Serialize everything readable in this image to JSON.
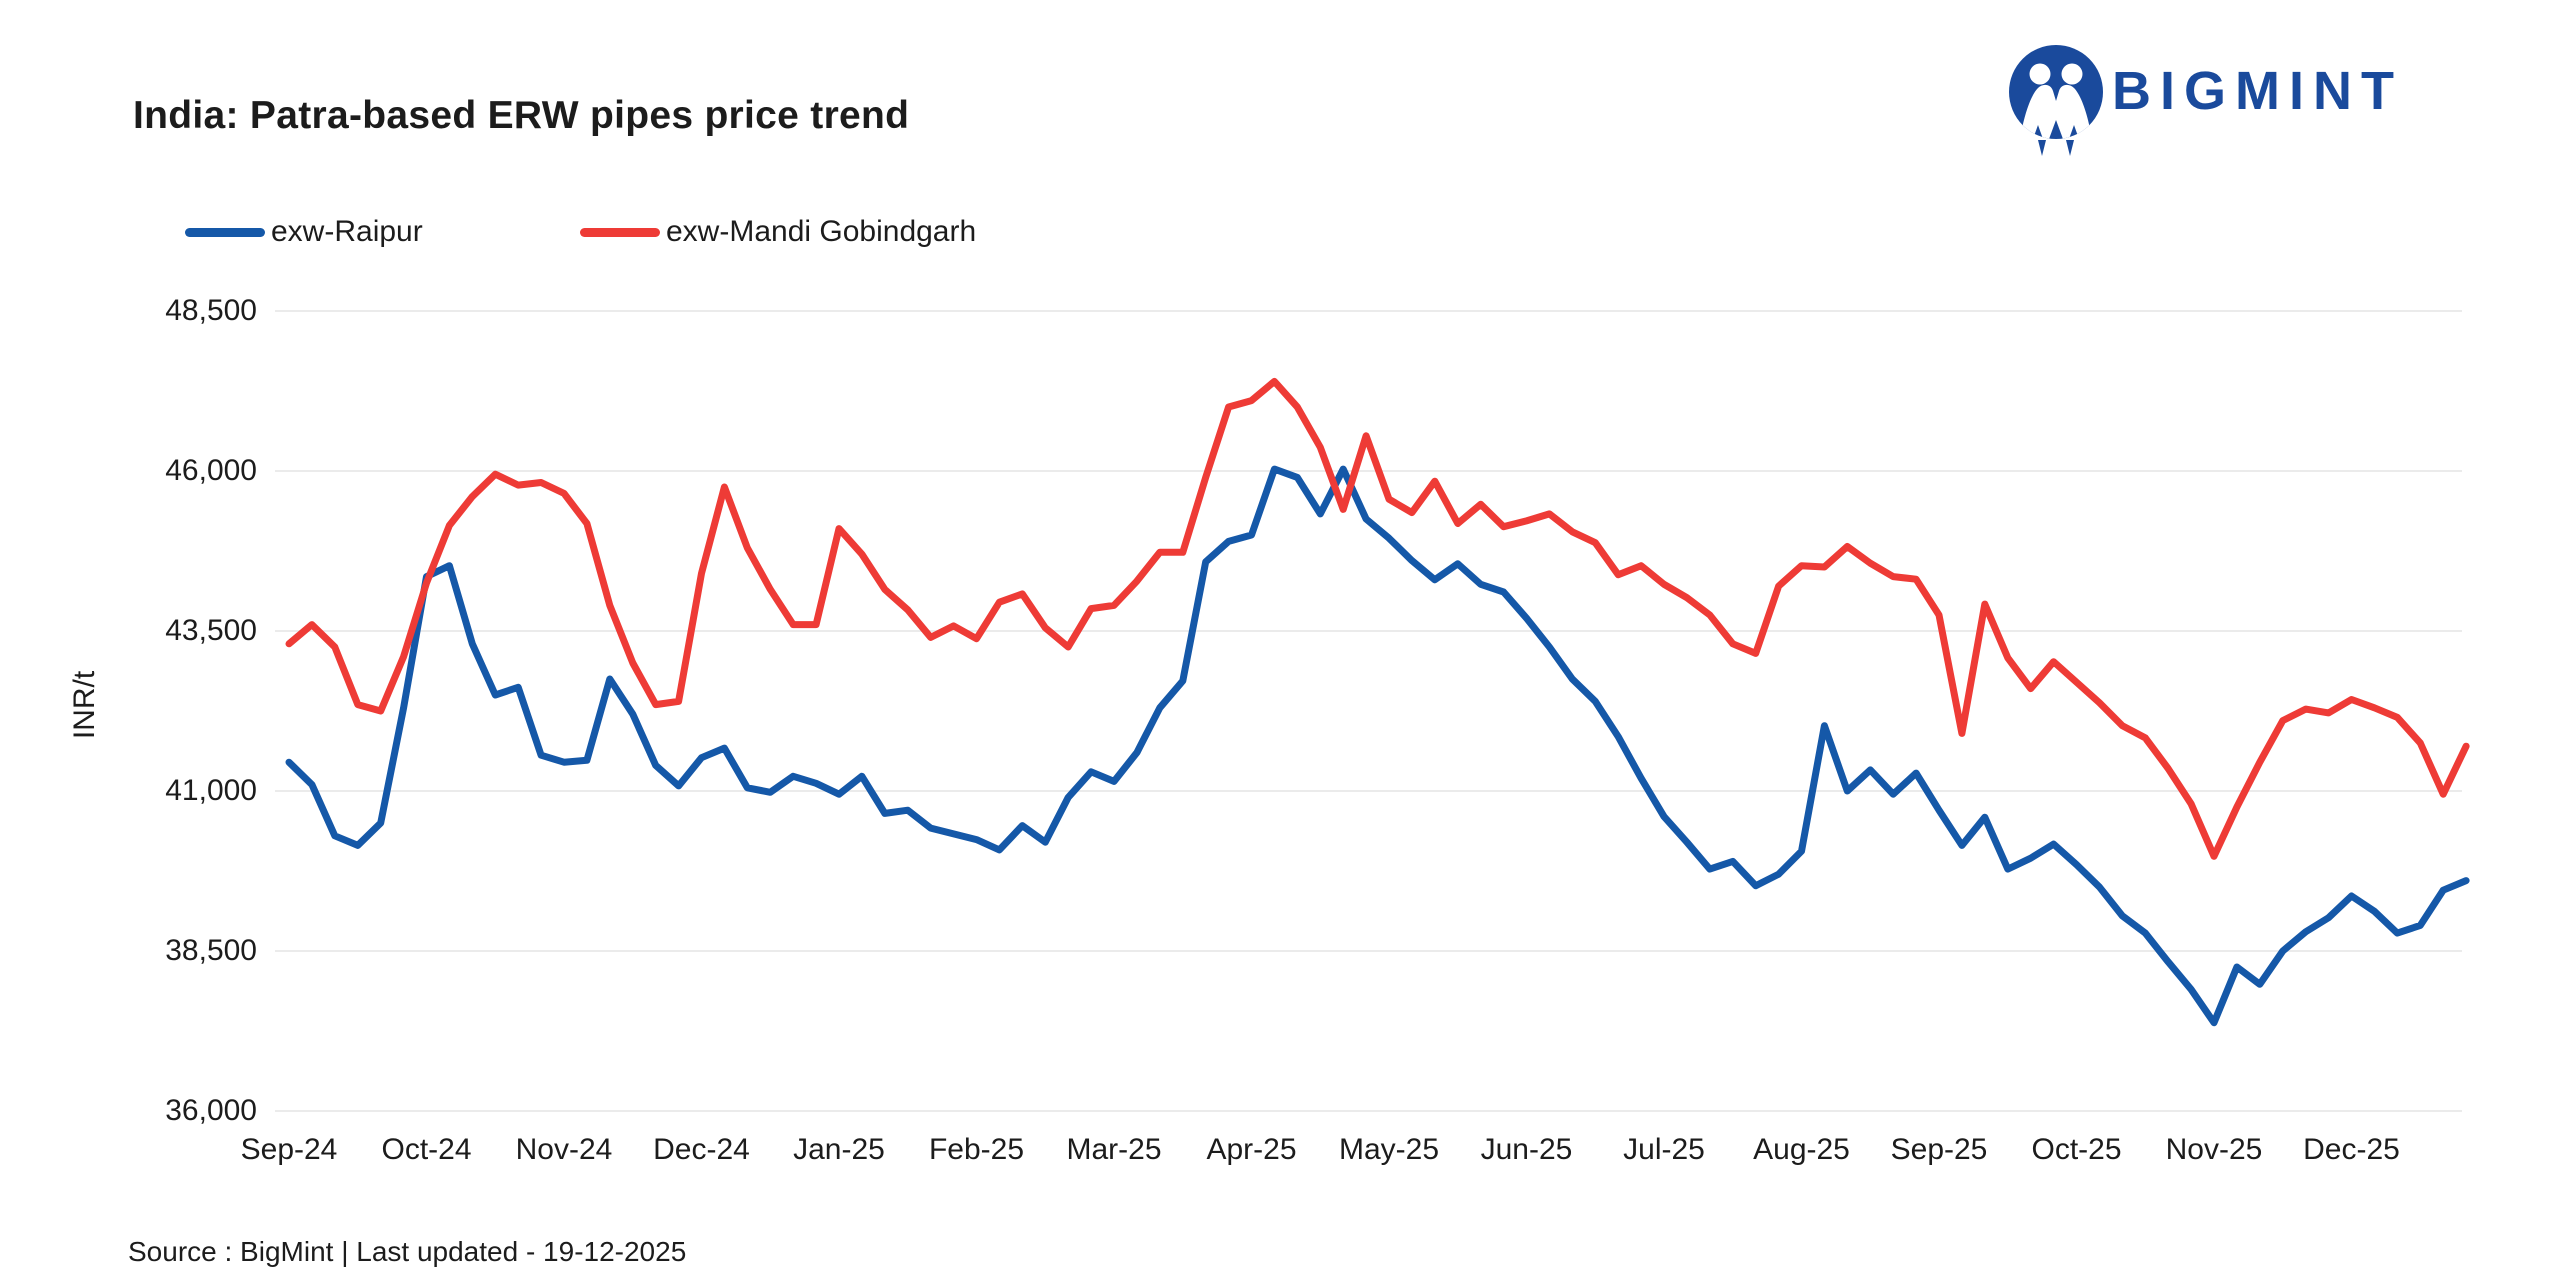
{
  "header": {
    "title": "India: Patra-based ERW pipes price trend"
  },
  "logo": {
    "text": "BIGMINT",
    "color": "#1a4a9c"
  },
  "legend": [
    {
      "label": "exw-Raipur",
      "color": "#1558a8"
    },
    {
      "label": "exw-Mandi Gobindgarh",
      "color": "#ee3b36"
    }
  ],
  "footer": {
    "source_text": "Source : BigMint | Last updated - 19-12-2025"
  },
  "chart_data": {
    "type": "line",
    "title": "India: Patra-based ERW pipes price trend",
    "xlabel": "",
    "ylabel": "INR/t",
    "ylim": [
      36000,
      48500
    ],
    "grid": "horizontal",
    "legend_position": "top-left",
    "y_ticks": [
      48500,
      46000,
      43500,
      41000,
      38500,
      36000
    ],
    "y_tick_labels": [
      "48,500",
      "46,000",
      "43,500",
      "41,000",
      "38,500",
      "36,000"
    ],
    "x_tick_labels": [
      "Sep-24",
      "Oct-24",
      "Nov-24",
      "Dec-24",
      "Jan-25",
      "Feb-25",
      "Mar-25",
      "Apr-25",
      "May-25",
      "Jun-25",
      "Jul-25",
      "Aug-25",
      "Sep-25",
      "Oct-25",
      "Nov-25",
      "Dec-25"
    ],
    "points_per_month": 6,
    "gridline_color": "#ebebeb",
    "series": [
      {
        "name": "exw-Raipur",
        "color": "#1558a8",
        "values": [
          41450,
          41100,
          40300,
          40150,
          40500,
          42300,
          44350,
          44520,
          43300,
          42500,
          42620,
          41560,
          41450,
          41480,
          42750,
          42200,
          41400,
          41080,
          41520,
          41670,
          41050,
          40980,
          41230,
          41120,
          40950,
          41230,
          40650,
          40700,
          40420,
          40330,
          40240,
          40080,
          40460,
          40200,
          40900,
          41300,
          41150,
          41600,
          42300,
          42720,
          44580,
          44900,
          45000,
          46030,
          45900,
          45330,
          46030,
          45250,
          44950,
          44600,
          44300,
          44550,
          44230,
          44110,
          43700,
          43250,
          42750,
          42400,
          41850,
          41200,
          40600,
          40200,
          39780,
          39900,
          39520,
          39700,
          40060,
          42020,
          41000,
          41330,
          40950,
          41280,
          40700,
          40150,
          40590,
          39780,
          39950,
          40170,
          39850,
          39500,
          39050,
          38780,
          38330,
          37900,
          37380,
          38250,
          37980,
          38500,
          38800,
          39020,
          39360,
          39120,
          38780,
          38900,
          39450,
          39600
        ]
      },
      {
        "name": "exw-Mandi Gobindgarh",
        "color": "#ee3b36",
        "values": [
          43300,
          43600,
          43250,
          42350,
          42250,
          43100,
          44250,
          45150,
          45600,
          45950,
          45780,
          45820,
          45650,
          45180,
          43900,
          43000,
          42350,
          42400,
          44400,
          45750,
          44800,
          44150,
          43600,
          43600,
          45100,
          44700,
          44150,
          43830,
          43400,
          43580,
          43380,
          43950,
          44080,
          43550,
          43250,
          43850,
          43900,
          44280,
          44730,
          44730,
          45900,
          47000,
          47100,
          47400,
          47000,
          46370,
          45400,
          46550,
          45560,
          45350,
          45840,
          45180,
          45480,
          45130,
          45220,
          45330,
          45050,
          44880,
          44380,
          44520,
          44230,
          44020,
          43750,
          43300,
          43150,
          44200,
          44520,
          44500,
          44820,
          44560,
          44350,
          44310,
          43750,
          41900,
          43920,
          43080,
          42600,
          43020,
          42700,
          42380,
          42020,
          41830,
          41350,
          40800,
          39980,
          40750,
          41450,
          42100,
          42280,
          42220,
          42430,
          42300,
          42150,
          41750,
          40950,
          41700
        ]
      }
    ]
  }
}
